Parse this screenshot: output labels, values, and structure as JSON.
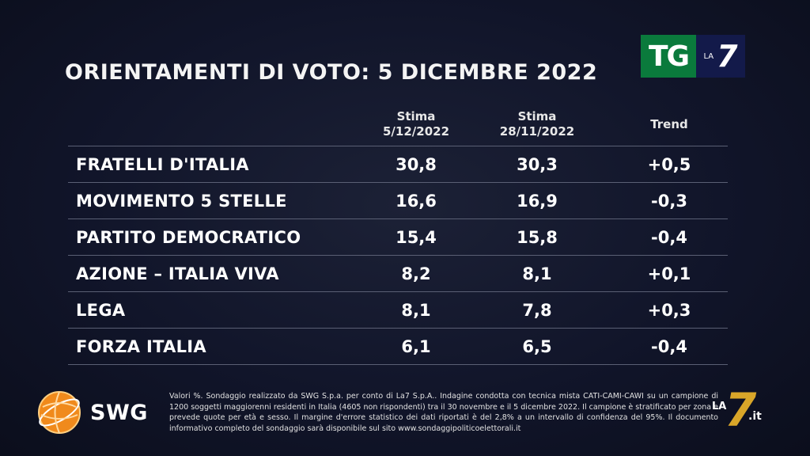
{
  "header": {
    "title": "ORIENTAMENTI DI VOTO: 5 DICEMBRE 2022",
    "logo_tg": "TG",
    "logo_la": "LA",
    "logo_seven": "7"
  },
  "table": {
    "col_party": "",
    "col1_line1": "Stima",
    "col1_line2": "5/12/2022",
    "col2_line1": "Stima",
    "col2_line2": "28/11/2022",
    "col3": "Trend"
  },
  "chart_data": {
    "type": "table",
    "title": "ORIENTAMENTI DI VOTO: 5 DICEMBRE 2022",
    "columns": [
      "Stima 5/12/2022",
      "Stima 28/11/2022",
      "Trend"
    ],
    "rows": [
      {
        "party": "FRATELLI D'ITALIA",
        "stima_now": "30,8",
        "stima_prev": "30,3",
        "trend": "+0,5"
      },
      {
        "party": "MOVIMENTO 5 STELLE",
        "stima_now": "16,6",
        "stima_prev": "16,9",
        "trend": "-0,3"
      },
      {
        "party": "PARTITO DEMOCRATICO",
        "stima_now": "15,4",
        "stima_prev": "15,8",
        "trend": "-0,4"
      },
      {
        "party": "AZIONE – ITALIA VIVA",
        "stima_now": "8,2",
        "stima_prev": "8,1",
        "trend": "+0,1"
      },
      {
        "party": "LEGA",
        "stima_now": "8,1",
        "stima_prev": "7,8",
        "trend": "+0,3"
      },
      {
        "party": "FORZA ITALIA",
        "stima_now": "6,1",
        "stima_prev": "6,5",
        "trend": "-0,4"
      }
    ]
  },
  "footer": {
    "swg_label": "SWG",
    "note": "Valori %. Sondaggio realizzato da SWG S.p.a. per conto di La7 S.p.A.. Indagine condotta con tecnica mista CATI-CAMI-CAWI su un campione di 1200 soggetti maggiorenni residenti in Italia (4605 non rispondenti) tra il 30 novembre e il 5 dicembre 2022. Il campione è stratificato per zona e prevede quote per età e sesso. Il margine d'errore statistico dei dati riportati è del 2,8% a un intervallo di confidenza del 95%. Il documento informativo completo del sondaggio sarà disponibile sul sito www.sondaggipoliticoelettorali.it",
    "watermark_la": "LA",
    "watermark_seven": "7",
    "watermark_it": ".it"
  },
  "colors": {
    "background": "#11152a",
    "tg_green": "#0a7a3c",
    "tg_blue": "#131a4a",
    "swg_orange": "#f08a1c",
    "la7_gold": "#d9a629"
  }
}
